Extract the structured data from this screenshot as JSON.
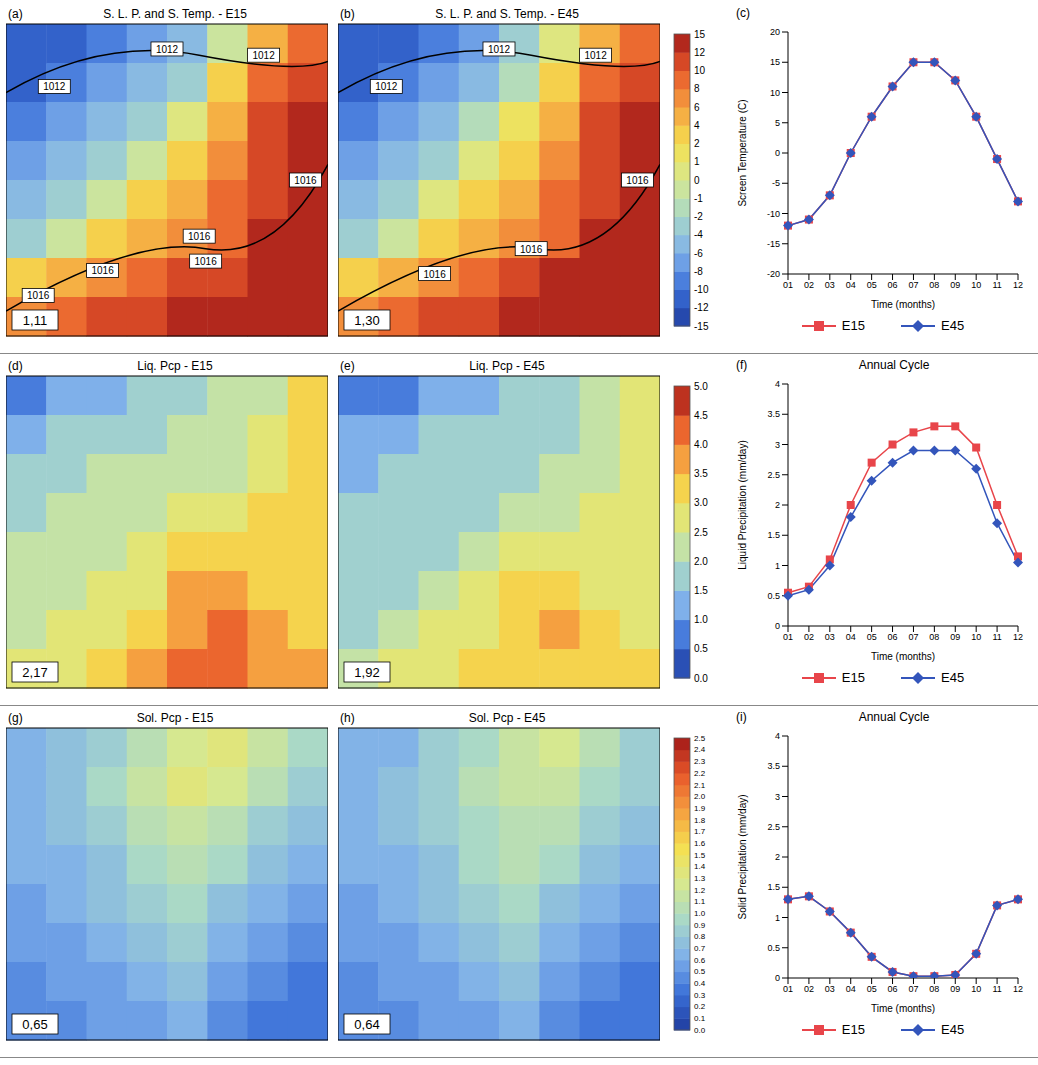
{
  "chart_data": [
    {
      "type": "map_row",
      "maps": [
        {
          "panel": "(a)",
          "type": "heatmap",
          "title": "S. L. P. and S. Temp. - E15",
          "domain_mean": {
            "value": 1.11,
            "label": "1,11"
          },
          "isobar_labels": [
            "1012",
            "1012",
            "1012",
            "1016",
            "1016",
            "1016",
            "1016",
            "1016"
          ],
          "cells": [
            [
              -12,
              -11,
              -10,
              -8,
              -5,
              -1,
              4,
              8
            ],
            [
              -11,
              -10,
              -8,
              -6,
              -3,
              2,
              8,
              10
            ],
            [
              -10,
              -8,
              -6,
              -3,
              0,
              4,
              10,
              12
            ],
            [
              -8,
              -6,
              -4,
              -1,
              2,
              6,
              10,
              12
            ],
            [
              -6,
              -4,
              -1,
              2,
              4,
              8,
              11,
              13
            ],
            [
              -4,
              -1,
              2,
              4,
              6,
              9,
              12,
              14
            ],
            [
              2,
              4,
              6,
              8,
              10,
              11,
              13,
              14
            ],
            [
              6,
              8,
              10,
              11,
              12,
              13,
              14,
              15
            ]
          ]
        },
        {
          "panel": "(b)",
          "type": "heatmap",
          "title": "S. L. P. and S. Temp. - E45",
          "domain_mean": {
            "value": 1.3,
            "label": "1,30"
          },
          "isobar_labels": [
            "1012",
            "1012",
            "1012",
            "1016",
            "1016",
            "1016"
          ],
          "cells": [
            [
              -12,
              -11,
              -9,
              -7,
              -4,
              0,
              5,
              8
            ],
            [
              -11,
              -9,
              -8,
              -5,
              -2,
              2,
              8,
              10
            ],
            [
              -9,
              -8,
              -5,
              -2,
              1,
              5,
              10,
              12
            ],
            [
              -8,
              -6,
              -3,
              0,
              2,
              6,
              10,
              12
            ],
            [
              -6,
              -3,
              0,
              2,
              5,
              8,
              11,
              13
            ],
            [
              -3,
              -1,
              2,
              4,
              6,
              9,
              12,
              14
            ],
            [
              2,
              4,
              6,
              8,
              10,
              12,
              13,
              14
            ],
            [
              6,
              8,
              10,
              11,
              12,
              13,
              14,
              15
            ]
          ]
        }
      ],
      "colorbar": {
        "ticks": [
          -15,
          -12,
          -10,
          -8,
          -6,
          -4,
          -2,
          -1,
          0,
          1,
          2,
          4,
          6,
          8,
          10,
          12,
          15
        ]
      },
      "chart": {
        "panel": "(c)",
        "type": "line",
        "x_label": "Time (months)",
        "y_label": "Screen Temperature (C)",
        "categories": [
          "01",
          "02",
          "03",
          "04",
          "05",
          "06",
          "07",
          "08",
          "09",
          "10",
          "11",
          "12"
        ],
        "ylim": [
          -20,
          20
        ],
        "yticks": [
          -20,
          -15,
          -10,
          -5,
          0,
          5,
          10,
          15,
          20
        ],
        "legend": "bottom",
        "series": [
          {
            "name": "E15",
            "color": "#e8454a",
            "marker": "square",
            "values": [
              -12,
              -11,
              -7,
              0,
              6,
              11,
              15,
              15,
              12,
              6,
              -1,
              -8
            ]
          },
          {
            "name": "E45",
            "color": "#3355bb",
            "marker": "diamond",
            "values": [
              -12,
              -11,
              -7,
              0,
              6,
              11,
              15,
              15,
              12,
              6,
              -1,
              -8
            ]
          }
        ]
      }
    },
    {
      "type": "map_row",
      "maps": [
        {
          "panel": "(d)",
          "type": "heatmap",
          "title": "Liq. Pcp - E15",
          "domain_mean": {
            "value": 2.17,
            "label": "2,17"
          },
          "cells": [
            [
              0.8,
              1.0,
              1.3,
              1.6,
              1.8,
              2.0,
              2.4,
              3.0
            ],
            [
              1.2,
              1.5,
              1.8,
              1.8,
              2.0,
              2.2,
              2.6,
              3.0
            ],
            [
              1.5,
              1.8,
              2.0,
              2.0,
              2.2,
              2.4,
              2.8,
              3.2
            ],
            [
              1.8,
              2.0,
              2.0,
              2.2,
              2.5,
              2.8,
              3.0,
              3.2
            ],
            [
              2.0,
              2.0,
              2.2,
              2.5,
              3.0,
              3.2,
              3.0,
              3.0
            ],
            [
              2.0,
              2.2,
              2.5,
              2.8,
              3.5,
              3.8,
              3.2,
              3.0
            ],
            [
              2.2,
              2.5,
              2.8,
              3.2,
              3.8,
              4.2,
              3.5,
              3.2
            ],
            [
              2.5,
              2.8,
              3.2,
              3.5,
              4.0,
              4.0,
              3.5,
              3.5
            ]
          ]
        },
        {
          "panel": "(e)",
          "type": "heatmap",
          "title": "Liq. Pcp - E45",
          "domain_mean": {
            "value": 1.92,
            "label": "1,92"
          },
          "cells": [
            [
              0.6,
              0.8,
              1.0,
              1.3,
              1.5,
              1.7,
              2.0,
              2.6
            ],
            [
              1.0,
              1.2,
              1.5,
              1.6,
              1.7,
              1.9,
              2.2,
              2.6
            ],
            [
              1.3,
              1.5,
              1.7,
              1.8,
              1.9,
              2.1,
              2.4,
              2.8
            ],
            [
              1.5,
              1.7,
              1.8,
              1.9,
              2.2,
              2.4,
              2.6,
              2.8
            ],
            [
              1.7,
              1.8,
              1.9,
              2.2,
              2.6,
              2.8,
              2.6,
              2.7
            ],
            [
              1.8,
              1.9,
              2.2,
              2.5,
              3.0,
              3.3,
              2.8,
              2.6
            ],
            [
              1.9,
              2.2,
              2.5,
              2.8,
              3.3,
              3.6,
              3.0,
              2.8
            ],
            [
              2.2,
              2.5,
              2.8,
              3.0,
              3.4,
              3.4,
              3.0,
              3.0
            ]
          ]
        }
      ],
      "colorbar": {
        "ticks": [
          {
            "value": 0,
            "label": "0.0"
          },
          0.5,
          {
            "value": 1,
            "label": "1.0"
          },
          1.5,
          {
            "value": 2,
            "label": "2.0"
          },
          2.5,
          {
            "value": 3,
            "label": "3.0"
          },
          3.5,
          {
            "value": 4,
            "label": "4.0"
          },
          4.5,
          {
            "value": 5,
            "label": "5.0"
          }
        ]
      },
      "chart": {
        "panel": "(f)",
        "type": "line",
        "title": "Annual Cycle",
        "x_label": "Time (months)",
        "y_label": "Liquid Precipitation (mm/day)",
        "categories": [
          "01",
          "02",
          "03",
          "04",
          "05",
          "06",
          "07",
          "08",
          "09",
          "10",
          "11",
          "12"
        ],
        "ylim": [
          0,
          4
        ],
        "yticks": [
          0,
          0.5,
          1,
          1.5,
          2,
          2.5,
          3,
          3.5,
          4
        ],
        "legend": "bottom",
        "series": [
          {
            "name": "E15",
            "color": "#e8454a",
            "marker": "square",
            "values": [
              0.55,
              0.65,
              1.1,
              2.0,
              2.7,
              3.0,
              3.2,
              3.3,
              3.3,
              2.95,
              2.0,
              1.15
            ]
          },
          {
            "name": "E45",
            "color": "#3355bb",
            "marker": "diamond",
            "values": [
              0.5,
              0.6,
              1.0,
              1.8,
              2.4,
              2.7,
              2.9,
              2.9,
              2.9,
              2.6,
              1.7,
              1.05
            ]
          }
        ]
      }
    },
    {
      "type": "map_row",
      "maps": [
        {
          "panel": "(g)",
          "type": "heatmap",
          "title": "Sol. Pcp - E15",
          "domain_mean": {
            "value": 0.65,
            "label": "0,65"
          },
          "cells": [
            [
              0.6,
              0.7,
              0.8,
              1.0,
              1.2,
              1.3,
              1.1,
              0.9
            ],
            [
              0.6,
              0.7,
              0.9,
              1.1,
              1.3,
              1.2,
              1.0,
              0.8
            ],
            [
              0.6,
              0.7,
              0.8,
              1.0,
              1.1,
              1.0,
              0.8,
              0.7
            ],
            [
              0.6,
              0.6,
              0.7,
              0.9,
              1.0,
              0.9,
              0.7,
              0.6
            ],
            [
              0.5,
              0.6,
              0.7,
              0.8,
              0.9,
              0.7,
              0.6,
              0.5
            ],
            [
              0.5,
              0.5,
              0.6,
              0.7,
              0.8,
              0.6,
              0.5,
              0.4
            ],
            [
              0.4,
              0.5,
              0.5,
              0.6,
              0.7,
              0.5,
              0.4,
              0.3
            ],
            [
              0.4,
              0.4,
              0.5,
              0.5,
              0.6,
              0.4,
              0.3,
              0.3
            ]
          ]
        },
        {
          "panel": "(h)",
          "type": "heatmap",
          "title": "Sol. Pcp - E45",
          "domain_mean": {
            "value": 0.64,
            "label": "0,64"
          },
          "cells": [
            [
              0.6,
              0.6,
              0.8,
              0.9,
              1.1,
              1.2,
              1.0,
              0.8
            ],
            [
              0.6,
              0.7,
              0.8,
              1.0,
              1.1,
              1.1,
              0.9,
              0.8
            ],
            [
              0.6,
              0.7,
              0.8,
              0.9,
              1.0,
              1.0,
              0.8,
              0.7
            ],
            [
              0.6,
              0.6,
              0.7,
              0.9,
              1.0,
              0.9,
              0.7,
              0.6
            ],
            [
              0.5,
              0.6,
              0.7,
              0.8,
              0.9,
              0.7,
              0.6,
              0.5
            ],
            [
              0.5,
              0.5,
              0.6,
              0.7,
              0.8,
              0.6,
              0.5,
              0.4
            ],
            [
              0.4,
              0.5,
              0.5,
              0.6,
              0.7,
              0.5,
              0.4,
              0.3
            ],
            [
              0.4,
              0.4,
              0.5,
              0.5,
              0.6,
              0.4,
              0.3,
              0.3
            ]
          ]
        }
      ],
      "colorbar": {
        "ticks": [
          {
            "value": 0,
            "label": "0.0"
          },
          0.1,
          0.2,
          0.3,
          0.4,
          0.5,
          0.6,
          0.7,
          0.8,
          0.9,
          {
            "value": 1,
            "label": "1.0"
          },
          1.1,
          1.2,
          1.3,
          1.4,
          1.5,
          1.6,
          1.7,
          1.8,
          1.9,
          {
            "value": 2,
            "label": "2.0"
          },
          2.1,
          2.2,
          2.3,
          2.4,
          2.5
        ]
      },
      "chart": {
        "panel": "(i)",
        "type": "line",
        "title": "Annual Cycle",
        "x_label": "Time (months)",
        "y_label": "Solid Precipitation (mm/day)",
        "categories": [
          "01",
          "02",
          "03",
          "04",
          "05",
          "06",
          "07",
          "08",
          "09",
          "10",
          "11",
          "12"
        ],
        "ylim": [
          0,
          4
        ],
        "yticks": [
          0,
          0.5,
          1,
          1.5,
          2,
          2.5,
          3,
          3.5,
          4
        ],
        "legend": "bottom",
        "series": [
          {
            "name": "E15",
            "color": "#e8454a",
            "marker": "square",
            "values": [
              1.3,
              1.35,
              1.1,
              0.75,
              0.35,
              0.1,
              0.03,
              0.03,
              0.05,
              0.4,
              1.2,
              1.3
            ]
          },
          {
            "name": "E45",
            "color": "#3355bb",
            "marker": "diamond",
            "values": [
              1.3,
              1.35,
              1.1,
              0.75,
              0.35,
              0.1,
              0.03,
              0.03,
              0.05,
              0.4,
              1.2,
              1.3
            ]
          }
        ]
      }
    }
  ]
}
